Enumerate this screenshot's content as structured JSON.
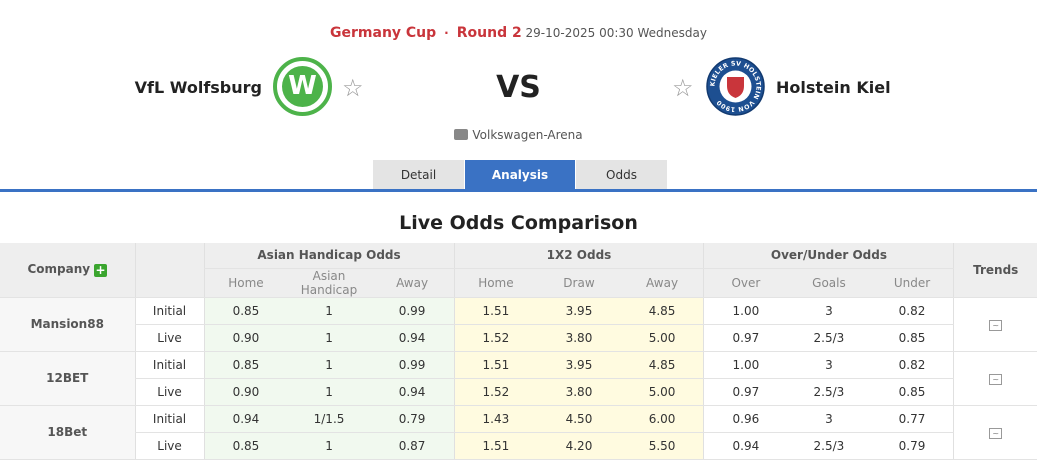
{
  "match": {
    "league": "Germany Cup",
    "round": "Round 2",
    "datetime": "29-10-2025 00:30 Wednesday",
    "home": "VfL Wolfsburg",
    "away": "Holstein Kiel",
    "vs": "VS",
    "venue": "Volkswagen-Arena",
    "home_logo_text": "W",
    "away_logo_text": "KIELER SV HOLSTEIN VON 1900"
  },
  "tabs": [
    {
      "label": "Detail"
    },
    {
      "label": "Analysis",
      "active": true
    },
    {
      "label": "Odds"
    }
  ],
  "title": "Live Odds Comparison",
  "table": {
    "company_header": "Company",
    "groups": [
      "Asian Handicap Odds",
      "1X2 Odds",
      "Over/Under Odds",
      "Trends"
    ],
    "subheaders": [
      "Home",
      "Asian Handicap",
      "Away",
      "Home",
      "Draw",
      "Away",
      "Over",
      "Goals",
      "Under"
    ],
    "rows": [
      {
        "company": "Mansion88",
        "lines": [
          {
            "type": "Initial",
            "values": [
              "0.85",
              "1",
              "0.99",
              "1.51",
              "3.95",
              "4.85",
              "1.00",
              "3",
              "0.82"
            ]
          },
          {
            "type": "Live",
            "values": [
              "0.90",
              "1",
              "0.94",
              "1.52",
              "3.80",
              "5.00",
              "0.97",
              "2.5/3",
              "0.85"
            ]
          }
        ]
      },
      {
        "company": "12BET",
        "lines": [
          {
            "type": "Initial",
            "values": [
              "0.85",
              "1",
              "0.99",
              "1.51",
              "3.95",
              "4.85",
              "1.00",
              "3",
              "0.82"
            ]
          },
          {
            "type": "Live",
            "values": [
              "0.90",
              "1",
              "0.94",
              "1.52",
              "3.80",
              "5.00",
              "0.97",
              "2.5/3",
              "0.85"
            ]
          }
        ]
      },
      {
        "company": "18Bet",
        "lines": [
          {
            "type": "Initial",
            "values": [
              "0.94",
              "1/1.5",
              "0.79",
              "1.43",
              "4.50",
              "6.00",
              "0.96",
              "3",
              "0.77"
            ]
          },
          {
            "type": "Live",
            "values": [
              "0.85",
              "1",
              "0.87",
              "1.51",
              "4.20",
              "5.50",
              "0.94",
              "2.5/3",
              "0.79"
            ]
          }
        ]
      }
    ]
  },
  "colors": {
    "accent": "#3a72c4",
    "league": "#c9353b",
    "wolfsburg": "#4db34a",
    "kiel": "#1d4f91"
  }
}
